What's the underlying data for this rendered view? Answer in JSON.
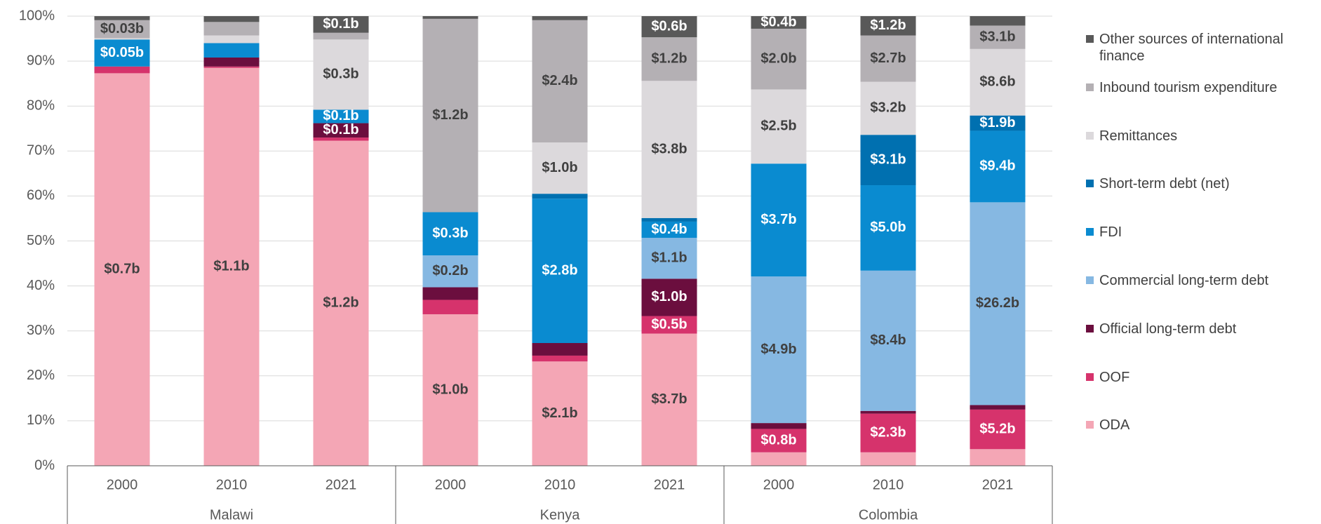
{
  "chart_data": {
    "type": "stacked_bar_100",
    "categories": [
      "2000",
      "2010",
      "2021",
      "2000",
      "2010",
      "2021",
      "2000",
      "2010",
      "2021"
    ],
    "groups": [
      "Malawi",
      "Kenya",
      "Colombia"
    ],
    "ylim": [
      0,
      100
    ],
    "yticks": [
      {
        "value": 0,
        "label": "0%"
      },
      {
        "value": 10,
        "label": "10%"
      },
      {
        "value": 20,
        "label": "20%"
      },
      {
        "value": 30,
        "label": "30%"
      },
      {
        "value": 40,
        "label": "40%"
      },
      {
        "value": 50,
        "label": "50%"
      },
      {
        "value": 60,
        "label": "60%"
      },
      {
        "value": 70,
        "label": "70%"
      },
      {
        "value": 80,
        "label": "80%"
      },
      {
        "value": 90,
        "label": "90%"
      },
      {
        "value": 100,
        "label": "100%"
      }
    ],
    "grid": true,
    "legend": "right",
    "series": [
      {
        "name": "ODA",
        "color": "#f4a6b5",
        "label_color": "#404040",
        "values": [
          87.3,
          88.5,
          72.3,
          33.7,
          23.2,
          29.4,
          3.0,
          3.0,
          3.7
        ],
        "data_labels": [
          "$0.7b",
          "$1.1b",
          "$1.2b",
          "$1.0b",
          "$2.1b",
          "$3.7b",
          null,
          null,
          null
        ]
      },
      {
        "name": "OOF",
        "color": "#d6336c",
        "label_color": "#ffffff",
        "values": [
          1.5,
          0.3,
          0.7,
          3.2,
          1.3,
          3.9,
          5.2,
          8.6,
          8.8
        ],
        "data_labels": [
          null,
          null,
          null,
          null,
          null,
          "$0.5b",
          "$0.8b",
          "$2.3b",
          "$5.2b"
        ]
      },
      {
        "name": "Official long-term debt",
        "color": "#6b0e3e",
        "label_color": "#ffffff",
        "values": [
          0,
          2.0,
          3.2,
          2.8,
          2.8,
          8.3,
          1.3,
          0.6,
          1.0
        ],
        "data_labels": [
          null,
          null,
          "$0.1b",
          null,
          null,
          "$1.0b",
          null,
          null,
          null
        ]
      },
      {
        "name": "Commercial long-term debt",
        "color": "#86b8e2",
        "label_color": "#404040",
        "values": [
          0,
          0,
          0,
          7.1,
          0,
          9.1,
          32.6,
          31.2,
          45.1
        ],
        "data_labels": [
          null,
          null,
          null,
          "$0.2b",
          null,
          "$1.1b",
          "$4.9b",
          "$8.4b",
          "$26.2b"
        ]
      },
      {
        "name": "FDI",
        "color": "#0a8bd0",
        "label_color": "#ffffff",
        "values": [
          6.0,
          3.2,
          3.0,
          9.6,
          32.1,
          3.6,
          25.1,
          19.0,
          15.9
        ],
        "data_labels": [
          "$0.05b",
          null,
          "$0.1b",
          "$0.3b",
          "$2.8b",
          "$0.4b",
          "$3.7b",
          "$5.0b",
          "$9.4b"
        ]
      },
      {
        "name": "Short-term debt (net)",
        "color": "#0070b0",
        "label_color": "#ffffff",
        "values": [
          0,
          0,
          0,
          0,
          1.1,
          0.8,
          0,
          11.2,
          3.4
        ],
        "data_labels": [
          null,
          null,
          null,
          null,
          null,
          null,
          null,
          "$3.1b",
          "$1.9b"
        ]
      },
      {
        "name": "Remittances",
        "color": "#dcd9dc",
        "label_color": "#404040",
        "values": [
          0.3,
          1.7,
          15.6,
          0,
          11.4,
          30.5,
          16.5,
          11.8,
          14.8
        ],
        "data_labels": [
          null,
          null,
          "$0.3b",
          null,
          "$1.0b",
          "$3.8b",
          "$2.5b",
          "$3.2b",
          "$8.6b"
        ]
      },
      {
        "name": "Inbound tourism expenditure",
        "color": "#b4b0b4",
        "label_color": "#404040",
        "values": [
          4.0,
          3.0,
          1.5,
          43.0,
          27.2,
          9.7,
          13.5,
          10.3,
          5.2
        ],
        "data_labels": [
          "$0.03b",
          null,
          null,
          "$1.2b",
          "$2.4b",
          "$1.2b",
          "$2.0b",
          "$2.7b",
          "$3.1b"
        ]
      },
      {
        "name": "Other sources of international finance",
        "color": "#595959",
        "label_color": "#ffffff",
        "values": [
          0.9,
          1.3,
          3.7,
          0.6,
          0.9,
          4.7,
          2.8,
          4.3,
          2.1
        ],
        "data_labels": [
          null,
          null,
          "$0.1b",
          null,
          null,
          "$0.6b",
          "$0.4b",
          "$1.2b",
          null
        ]
      }
    ]
  }
}
